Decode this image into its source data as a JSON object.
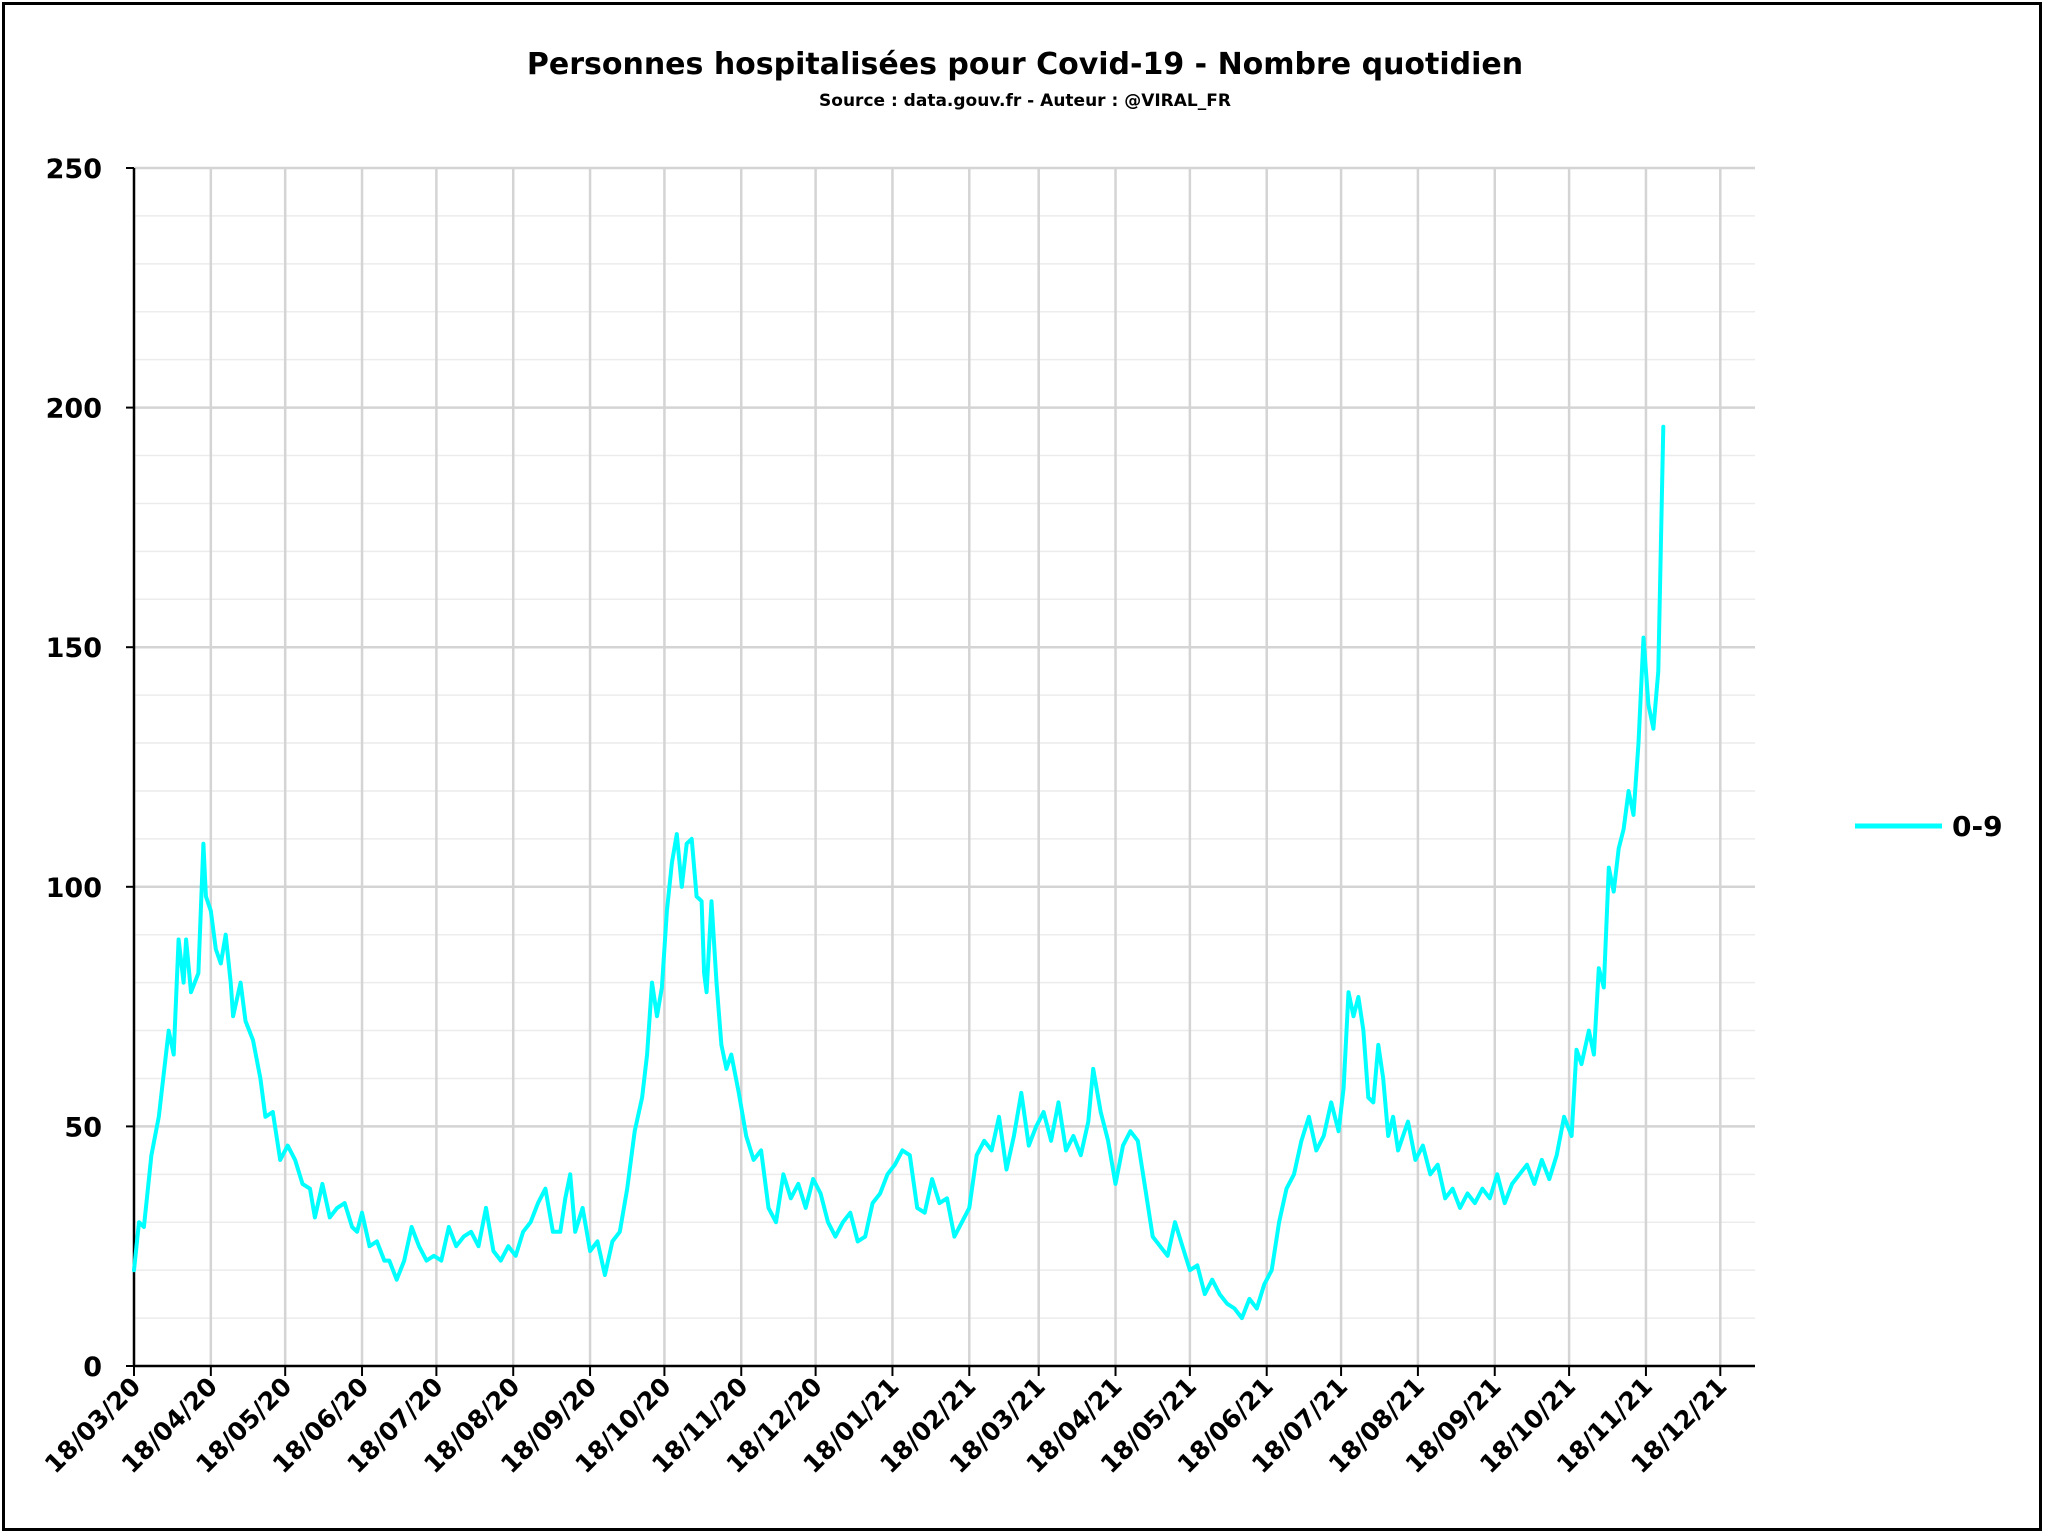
{
  "chart_data": {
    "type": "line",
    "title": "Personnes hospitalisées pour Covid-19 - Nombre quotidien",
    "subtitle": "Source : data.gouv.fr - Auteur : @VIRAL_FR",
    "xlabel": "",
    "ylabel": "",
    "ylim": [
      0,
      250
    ],
    "yticks": [
      "0",
      "50",
      "100",
      "150",
      "200",
      "250"
    ],
    "x_start": "18/03/20",
    "x_end": "01/01/22",
    "xticks": [
      "18/03/20",
      "18/04/20",
      "18/05/20",
      "18/06/20",
      "18/07/20",
      "18/08/20",
      "18/09/20",
      "18/10/20",
      "18/11/20",
      "18/12/20",
      "18/01/21",
      "18/02/21",
      "18/03/21",
      "18/04/21",
      "18/05/21",
      "18/06/21",
      "18/07/21",
      "18/08/21",
      "18/09/21",
      "18/10/21",
      "18/11/21",
      "18/12/21"
    ],
    "grid": true,
    "legend_position": "right",
    "series": [
      {
        "name": "0-9",
        "color": "#00FFFF",
        "points": [
          [
            "18/03/20",
            20
          ],
          [
            "20/03/20",
            30
          ],
          [
            "22/03/20",
            29
          ],
          [
            "25/03/20",
            44
          ],
          [
            "28/03/20",
            52
          ],
          [
            "01/04/20",
            70
          ],
          [
            "03/04/20",
            65
          ],
          [
            "05/04/20",
            89
          ],
          [
            "07/04/20",
            80
          ],
          [
            "08/04/20",
            89
          ],
          [
            "10/04/20",
            78
          ],
          [
            "13/04/20",
            82
          ],
          [
            "15/04/20",
            109
          ],
          [
            "16/04/20",
            98
          ],
          [
            "18/04/20",
            95
          ],
          [
            "20/04/20",
            87
          ],
          [
            "22/04/20",
            84
          ],
          [
            "24/04/20",
            90
          ],
          [
            "26/04/20",
            80
          ],
          [
            "27/04/20",
            73
          ],
          [
            "30/04/20",
            80
          ],
          [
            "02/05/20",
            72
          ],
          [
            "05/05/20",
            68
          ],
          [
            "08/05/20",
            60
          ],
          [
            "10/05/20",
            52
          ],
          [
            "13/05/20",
            53
          ],
          [
            "16/05/20",
            43
          ],
          [
            "19/05/20",
            46
          ],
          [
            "22/05/20",
            43
          ],
          [
            "25/05/20",
            38
          ],
          [
            "28/05/20",
            37
          ],
          [
            "30/05/20",
            31
          ],
          [
            "02/06/20",
            38
          ],
          [
            "05/06/20",
            31
          ],
          [
            "08/06/20",
            33
          ],
          [
            "11/06/20",
            34
          ],
          [
            "14/06/20",
            29
          ],
          [
            "16/06/20",
            28
          ],
          [
            "18/06/20",
            32
          ],
          [
            "21/06/20",
            25
          ],
          [
            "24/06/20",
            26
          ],
          [
            "27/06/20",
            22
          ],
          [
            "29/06/20",
            22
          ],
          [
            "02/07/20",
            18
          ],
          [
            "05/07/20",
            22
          ],
          [
            "08/07/20",
            29
          ],
          [
            "11/07/20",
            25
          ],
          [
            "14/07/20",
            22
          ],
          [
            "17/07/20",
            23
          ],
          [
            "20/07/20",
            22
          ],
          [
            "23/07/20",
            29
          ],
          [
            "26/07/20",
            25
          ],
          [
            "29/07/20",
            27
          ],
          [
            "01/08/20",
            28
          ],
          [
            "04/08/20",
            25
          ],
          [
            "07/08/20",
            33
          ],
          [
            "10/08/20",
            24
          ],
          [
            "13/08/20",
            22
          ],
          [
            "16/08/20",
            25
          ],
          [
            "19/08/20",
            23
          ],
          [
            "22/08/20",
            28
          ],
          [
            "25/08/20",
            30
          ],
          [
            "28/08/20",
            34
          ],
          [
            "31/08/20",
            37
          ],
          [
            "03/09/20",
            28
          ],
          [
            "06/09/20",
            28
          ],
          [
            "08/09/20",
            35
          ],
          [
            "10/09/20",
            40
          ],
          [
            "12/09/20",
            28
          ],
          [
            "15/09/20",
            33
          ],
          [
            "18/09/20",
            24
          ],
          [
            "21/09/20",
            26
          ],
          [
            "24/09/20",
            19
          ],
          [
            "27/09/20",
            26
          ],
          [
            "30/09/20",
            28
          ],
          [
            "03/10/20",
            37
          ],
          [
            "06/10/20",
            49
          ],
          [
            "09/10/20",
            56
          ],
          [
            "11/10/20",
            65
          ],
          [
            "13/10/20",
            80
          ],
          [
            "15/10/20",
            73
          ],
          [
            "17/10/20",
            79
          ],
          [
            "19/10/20",
            95
          ],
          [
            "21/10/20",
            105
          ],
          [
            "23/10/20",
            111
          ],
          [
            "25/10/20",
            100
          ],
          [
            "27/10/20",
            109
          ],
          [
            "29/10/20",
            110
          ],
          [
            "31/10/20",
            98
          ],
          [
            "02/11/20",
            97
          ],
          [
            "03/11/20",
            82
          ],
          [
            "04/11/20",
            78
          ],
          [
            "06/11/20",
            97
          ],
          [
            "08/11/20",
            80
          ],
          [
            "10/11/20",
            67
          ],
          [
            "12/11/20",
            62
          ],
          [
            "14/11/20",
            65
          ],
          [
            "17/11/20",
            57
          ],
          [
            "20/11/20",
            48
          ],
          [
            "23/11/20",
            43
          ],
          [
            "26/11/20",
            45
          ],
          [
            "29/11/20",
            33
          ],
          [
            "02/12/20",
            30
          ],
          [
            "05/12/20",
            40
          ],
          [
            "08/12/20",
            35
          ],
          [
            "11/12/20",
            38
          ],
          [
            "14/12/20",
            33
          ],
          [
            "17/12/20",
            39
          ],
          [
            "20/12/20",
            36
          ],
          [
            "23/12/20",
            30
          ],
          [
            "26/12/20",
            27
          ],
          [
            "29/12/20",
            30
          ],
          [
            "01/01/21",
            32
          ],
          [
            "04/01/21",
            26
          ],
          [
            "07/01/21",
            27
          ],
          [
            "10/01/21",
            34
          ],
          [
            "13/01/21",
            36
          ],
          [
            "16/01/21",
            40
          ],
          [
            "19/01/21",
            42
          ],
          [
            "22/01/21",
            45
          ],
          [
            "25/01/21",
            44
          ],
          [
            "28/01/21",
            33
          ],
          [
            "31/01/21",
            32
          ],
          [
            "03/02/21",
            39
          ],
          [
            "06/02/21",
            34
          ],
          [
            "09/02/21",
            35
          ],
          [
            "12/02/21",
            27
          ],
          [
            "15/02/21",
            30
          ],
          [
            "18/02/21",
            33
          ],
          [
            "21/02/21",
            44
          ],
          [
            "24/02/21",
            47
          ],
          [
            "27/02/21",
            45
          ],
          [
            "02/03/21",
            52
          ],
          [
            "05/03/21",
            41
          ],
          [
            "08/03/21",
            48
          ],
          [
            "11/03/21",
            57
          ],
          [
            "14/03/21",
            46
          ],
          [
            "17/03/21",
            50
          ],
          [
            "20/03/21",
            53
          ],
          [
            "23/03/21",
            47
          ],
          [
            "26/03/21",
            55
          ],
          [
            "29/03/21",
            45
          ],
          [
            "01/04/21",
            48
          ],
          [
            "04/04/21",
            44
          ],
          [
            "07/04/21",
            51
          ],
          [
            "09/04/21",
            62
          ],
          [
            "12/04/21",
            53
          ],
          [
            "15/04/21",
            47
          ],
          [
            "18/04/21",
            38
          ],
          [
            "21/04/21",
            46
          ],
          [
            "24/04/21",
            49
          ],
          [
            "27/04/21",
            47
          ],
          [
            "30/04/21",
            37
          ],
          [
            "03/05/21",
            27
          ],
          [
            "06/05/21",
            25
          ],
          [
            "09/05/21",
            23
          ],
          [
            "12/05/21",
            30
          ],
          [
            "15/05/21",
            25
          ],
          [
            "18/05/21",
            20
          ],
          [
            "21/05/21",
            21
          ],
          [
            "24/05/21",
            15
          ],
          [
            "27/05/21",
            18
          ],
          [
            "30/05/21",
            15
          ],
          [
            "02/06/21",
            13
          ],
          [
            "05/06/21",
            12
          ],
          [
            "08/06/21",
            10
          ],
          [
            "11/06/21",
            14
          ],
          [
            "14/06/21",
            12
          ],
          [
            "17/06/21",
            17
          ],
          [
            "20/06/21",
            20
          ],
          [
            "23/06/21",
            30
          ],
          [
            "26/06/21",
            37
          ],
          [
            "29/06/21",
            40
          ],
          [
            "02/07/21",
            47
          ],
          [
            "05/07/21",
            52
          ],
          [
            "08/07/21",
            45
          ],
          [
            "11/07/21",
            48
          ],
          [
            "14/07/21",
            55
          ],
          [
            "17/07/21",
            49
          ],
          [
            "19/07/21",
            58
          ],
          [
            "21/07/21",
            78
          ],
          [
            "23/07/21",
            73
          ],
          [
            "25/07/21",
            77
          ],
          [
            "27/07/21",
            70
          ],
          [
            "29/07/21",
            56
          ],
          [
            "31/07/21",
            55
          ],
          [
            "02/08/21",
            67
          ],
          [
            "04/08/21",
            60
          ],
          [
            "06/08/21",
            48
          ],
          [
            "08/08/21",
            52
          ],
          [
            "10/08/21",
            45
          ],
          [
            "12/08/21",
            48
          ],
          [
            "14/08/21",
            51
          ],
          [
            "17/08/21",
            43
          ],
          [
            "20/08/21",
            46
          ],
          [
            "23/08/21",
            40
          ],
          [
            "26/08/21",
            42
          ],
          [
            "29/08/21",
            35
          ],
          [
            "01/09/21",
            37
          ],
          [
            "04/09/21",
            33
          ],
          [
            "07/09/21",
            36
          ],
          [
            "10/09/21",
            34
          ],
          [
            "13/09/21",
            37
          ],
          [
            "16/09/21",
            35
          ],
          [
            "19/09/21",
            40
          ],
          [
            "22/09/21",
            34
          ],
          [
            "25/09/21",
            38
          ],
          [
            "28/09/21",
            40
          ],
          [
            "01/10/21",
            42
          ],
          [
            "04/10/21",
            38
          ],
          [
            "07/10/21",
            43
          ],
          [
            "10/10/21",
            39
          ],
          [
            "13/10/21",
            44
          ],
          [
            "16/10/21",
            52
          ],
          [
            "19/10/21",
            48
          ],
          [
            "21/10/21",
            66
          ],
          [
            "23/10/21",
            63
          ],
          [
            "26/10/21",
            70
          ],
          [
            "28/10/21",
            65
          ],
          [
            "30/10/21",
            83
          ],
          [
            "01/11/21",
            79
          ],
          [
            "03/11/21",
            104
          ],
          [
            "05/11/21",
            99
          ],
          [
            "07/11/21",
            108
          ],
          [
            "09/11/21",
            112
          ],
          [
            "11/11/21",
            120
          ],
          [
            "13/11/21",
            115
          ],
          [
            "15/11/21",
            130
          ],
          [
            "17/11/21",
            152
          ],
          [
            "19/11/21",
            138
          ],
          [
            "21/11/21",
            133
          ],
          [
            "23/11/21",
            145
          ],
          [
            "25/11/21",
            196
          ]
        ]
      }
    ]
  }
}
